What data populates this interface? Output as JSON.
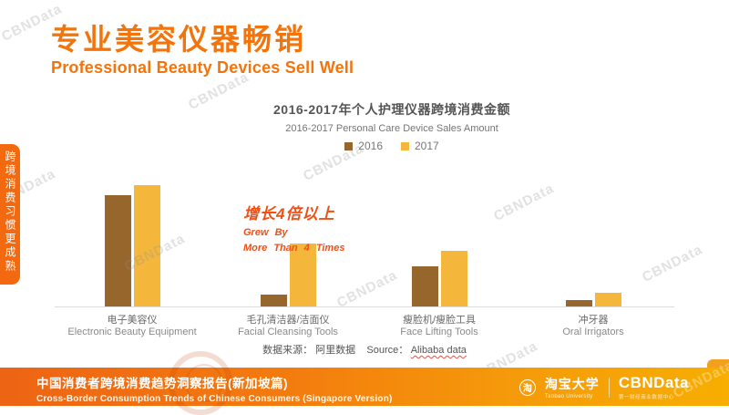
{
  "watermark_text": "CBNData",
  "side_tab": {
    "text": "跨境消费习惯更成熟"
  },
  "header": {
    "title_cn": "专业美容仪器畅销",
    "title_en": "Professional Beauty Devices Sell Well"
  },
  "chart_data": {
    "type": "bar",
    "title": "2016-2017年个人护理仪器跨境消费金额",
    "subtitle": "2016-2017 Personal Care Device Sales Amount",
    "categories": [
      "电子美容仪",
      "毛孔清洁器/洁面仪",
      "瘦脸机/瘦脸工具",
      "冲牙器"
    ],
    "categories_en": [
      "Electronic Beauty Equipment",
      "Facial Cleansing Tools",
      "Face Lifting Tools",
      "Oral Irrigators"
    ],
    "series": [
      {
        "name": "2016",
        "color": "#96662D",
        "values": [
          92,
          10,
          33,
          5
        ]
      },
      {
        "name": "2017",
        "color": "#F4B73C",
        "values": [
          100,
          52,
          46,
          11
        ]
      }
    ],
    "ylim": [
      0,
      100
    ],
    "values_note": "relative heights; no numeric axis shown in original",
    "grid": false,
    "legend_position": "top",
    "annotation": {
      "cn": "增长4倍以上",
      "en_line1": "Grew  By",
      "en_line2": "More Than 4 Times",
      "color": "#EE5016"
    }
  },
  "source": {
    "cn": "数据来源： 阿里数据",
    "en_label": "Source：",
    "en_value": "Alibaba data"
  },
  "footer": {
    "title_cn": "中国消费者跨境消费趋势洞察报告(新加坡篇)",
    "title_en": "Cross-Border Consumption Trends of Chinese Consumers  (Singapore Version)",
    "taobao_logo_char": "淘",
    "taobao_cn": "淘宝大学",
    "taobao_en": "Taobao University",
    "brand": "CBNData",
    "brand_sub": "第一财经商业数据中心",
    "gradient_left": "#ED6414",
    "gradient_right": "#F7AE00"
  },
  "colors": {
    "accent_orange": "#F2740B",
    "side_tab_orange": "#F2690F",
    "annotation_orange_red": "#EE5016",
    "bar_2016": "#96662D",
    "bar_2017": "#F4B73C",
    "axis_line": "#DCDCDC"
  }
}
